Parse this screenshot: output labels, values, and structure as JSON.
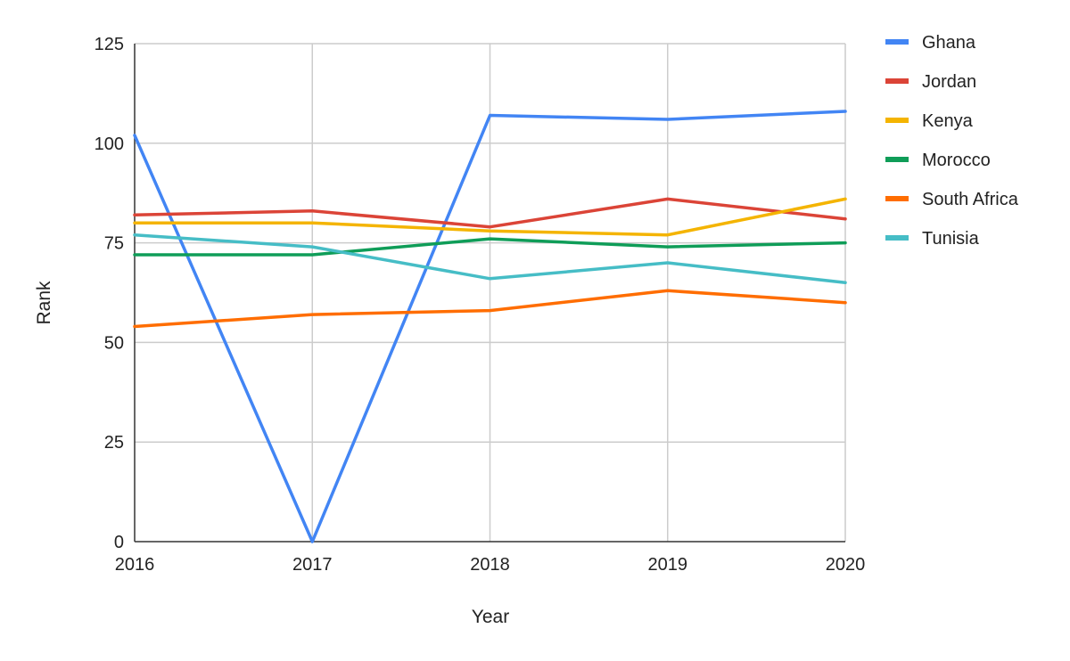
{
  "chart_data": {
    "type": "line",
    "title": "",
    "xlabel": "Year",
    "ylabel": "Rank",
    "x": [
      2016,
      2017,
      2018,
      2019,
      2020
    ],
    "x_tick_labels": [
      "2016",
      "2017",
      "2018",
      "2019",
      "2020"
    ],
    "ylim": [
      0,
      125
    ],
    "y_ticks": [
      0,
      25,
      50,
      75,
      100,
      125
    ],
    "y_tick_labels": [
      "0",
      "25",
      "50",
      "75",
      "100",
      "125"
    ],
    "grid": true,
    "legend_position": "right",
    "series": [
      {
        "name": "Ghana",
        "color": "#4285F4",
        "values": [
          102,
          0,
          107,
          106,
          108
        ]
      },
      {
        "name": "Jordan",
        "color": "#DB4437",
        "values": [
          82,
          83,
          79,
          86,
          81
        ]
      },
      {
        "name": "Kenya",
        "color": "#F4B400",
        "values": [
          80,
          80,
          78,
          77,
          86
        ]
      },
      {
        "name": "Morocco",
        "color": "#0F9D58",
        "values": [
          72,
          72,
          76,
          74,
          75
        ]
      },
      {
        "name": "South Africa",
        "color": "#FF6D00",
        "values": [
          54,
          57,
          58,
          63,
          60
        ]
      },
      {
        "name": "Tunisia",
        "color": "#46BDC6",
        "values": [
          77,
          74,
          66,
          70,
          65
        ]
      }
    ]
  }
}
